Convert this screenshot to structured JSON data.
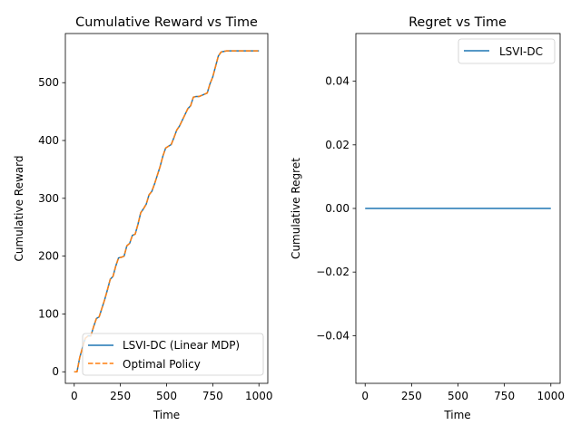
{
  "chart_data": [
    {
      "type": "line",
      "title": "Cumulative Reward vs Time",
      "xlabel": "Time",
      "ylabel": "Cumulative Reward",
      "xlim": [
        -48,
        1048
      ],
      "ylim": [
        -20,
        585
      ],
      "xticks": [
        0,
        250,
        500,
        750,
        1000
      ],
      "xtick_labels": [
        "0",
        "250",
        "500",
        "750",
        "1000"
      ],
      "yticks": [
        0,
        100,
        200,
        300,
        400,
        500
      ],
      "ytick_labels": [
        "0",
        "100",
        "200",
        "300",
        "400",
        "500"
      ],
      "grid": false,
      "legend": "lower-right",
      "x": [
        0,
        15,
        30,
        45,
        60,
        75,
        90,
        105,
        120,
        135,
        150,
        165,
        180,
        195,
        210,
        225,
        240,
        255,
        270,
        285,
        300,
        315,
        330,
        345,
        360,
        375,
        390,
        405,
        420,
        435,
        450,
        465,
        480,
        495,
        510,
        525,
        540,
        555,
        570,
        585,
        600,
        615,
        630,
        645,
        660,
        675,
        690,
        705,
        720,
        735,
        750,
        765,
        780,
        795,
        810,
        825,
        840,
        855,
        870,
        885,
        900,
        915,
        930,
        945,
        960,
        975,
        990,
        1000
      ],
      "series": [
        {
          "name": "LSVI-DC (Linear MDP)",
          "color": "#1f77b4",
          "style": "solid",
          "values": [
            0,
            0,
            25,
            42,
            58,
            62,
            62,
            78,
            92,
            95,
            110,
            125,
            142,
            160,
            165,
            183,
            197,
            198,
            200,
            218,
            222,
            236,
            238,
            255,
            275,
            282,
            290,
            306,
            312,
            325,
            340,
            355,
            373,
            387,
            390,
            393,
            405,
            418,
            425,
            435,
            445,
            455,
            460,
            475,
            476,
            476,
            478,
            480,
            482,
            498,
            510,
            528,
            546,
            553,
            554,
            555,
            555,
            555,
            555,
            555,
            555,
            555,
            555,
            555,
            555,
            555,
            555,
            555
          ]
        },
        {
          "name": "Optimal Policy",
          "color": "#ff7f0e",
          "style": "dashed",
          "values": [
            0,
            0,
            25,
            42,
            58,
            62,
            62,
            78,
            92,
            95,
            110,
            125,
            142,
            160,
            165,
            183,
            197,
            198,
            200,
            218,
            222,
            236,
            238,
            255,
            275,
            282,
            290,
            306,
            312,
            325,
            340,
            355,
            373,
            387,
            390,
            393,
            405,
            418,
            425,
            435,
            445,
            455,
            460,
            475,
            476,
            476,
            478,
            480,
            482,
            498,
            510,
            528,
            546,
            553,
            554,
            555,
            555,
            555,
            555,
            555,
            555,
            555,
            555,
            555,
            555,
            555,
            555,
            555
          ]
        }
      ]
    },
    {
      "type": "line",
      "title": "Regret vs Time",
      "xlabel": "Time",
      "ylabel": "Cumulative Regret",
      "xlim": [
        -50,
        1050
      ],
      "ylim": [
        -0.055,
        0.055
      ],
      "xticks": [
        0,
        250,
        500,
        750,
        1000
      ],
      "xtick_labels": [
        "0",
        "250",
        "500",
        "750",
        "1000"
      ],
      "yticks": [
        -0.04,
        -0.02,
        0.0,
        0.02,
        0.04
      ],
      "ytick_labels": [
        "−0.04",
        "−0.02",
        "0.00",
        "0.02",
        "0.04"
      ],
      "grid": false,
      "legend": "top-right",
      "x": [
        0,
        1000
      ],
      "series": [
        {
          "name": "LSVI-DC",
          "color": "#1f77b4",
          "style": "solid",
          "values": [
            0,
            0
          ]
        }
      ]
    }
  ]
}
